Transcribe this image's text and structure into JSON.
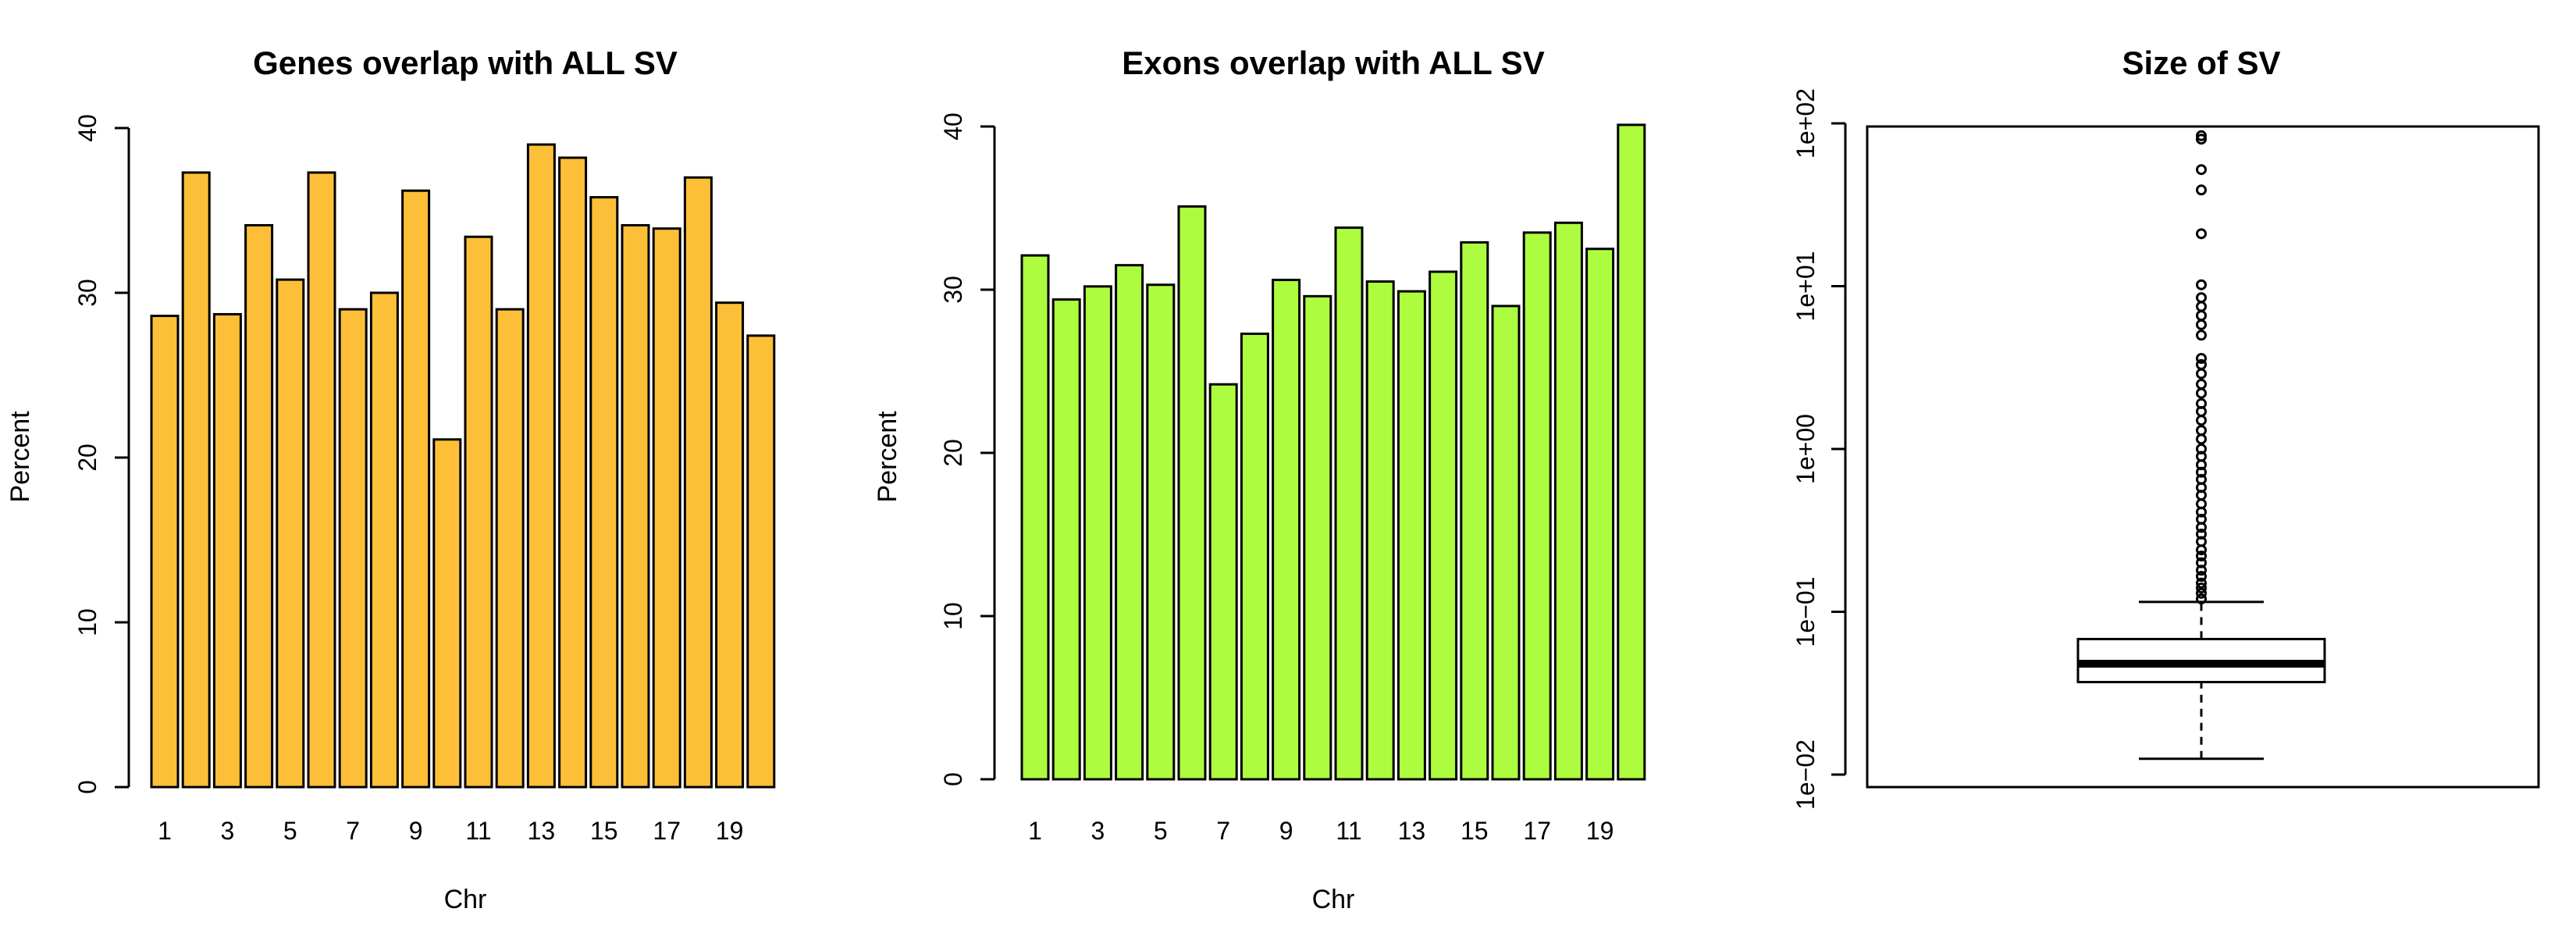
{
  "chart_data": [
    {
      "type": "bar",
      "title": "Genes overlap with ALL SV",
      "xlabel": "Chr",
      "ylabel": "Percent",
      "ylim": [
        0,
        40
      ],
      "yticks": [
        0,
        10,
        20,
        30,
        40
      ],
      "categories": [
        "1",
        "2",
        "3",
        "4",
        "5",
        "6",
        "7",
        "8",
        "9",
        "10",
        "11",
        "12",
        "13",
        "14",
        "15",
        "16",
        "17",
        "18",
        "19",
        "20"
      ],
      "xtick_labels": [
        "1",
        "3",
        "5",
        "7",
        "9",
        "11",
        "13",
        "15",
        "17",
        "19"
      ],
      "values": [
        28.6,
        37.3,
        28.7,
        34.1,
        30.8,
        37.3,
        29.0,
        30.0,
        36.2,
        21.1,
        33.4,
        29.0,
        39.0,
        38.2,
        35.8,
        34.1,
        33.9,
        37.0,
        29.4,
        27.4
      ],
      "color": "#FDBF38",
      "grid": false
    },
    {
      "type": "bar",
      "title": "Exons overlap with ALL SV",
      "xlabel": "Chr",
      "ylabel": "Percent",
      "ylim": [
        0,
        40
      ],
      "yticks": [
        0,
        10,
        20,
        30,
        40
      ],
      "categories": [
        "1",
        "2",
        "3",
        "4",
        "5",
        "6",
        "7",
        "8",
        "9",
        "10",
        "11",
        "12",
        "13",
        "14",
        "15",
        "16",
        "17",
        "18",
        "19",
        "20"
      ],
      "xtick_labels": [
        "1",
        "3",
        "5",
        "7",
        "9",
        "11",
        "13",
        "15",
        "17",
        "19"
      ],
      "values": [
        32.1,
        29.4,
        30.2,
        31.5,
        30.3,
        35.1,
        24.2,
        27.3,
        30.6,
        29.6,
        33.8,
        30.5,
        29.9,
        31.1,
        32.9,
        29.0,
        33.5,
        34.1,
        32.5,
        40.1
      ],
      "color": "#ADFC3F",
      "grid": false
    },
    {
      "type": "boxplot",
      "title": "Size of SV",
      "log_scale": true,
      "yticks": [
        0.01,
        0.1,
        1,
        10,
        100
      ],
      "ytick_labels": [
        "1e−02",
        "1e−01",
        "1e+00",
        "1e+01",
        "1e+02"
      ],
      "whisker_low": 0.0125,
      "q1": 0.037,
      "median": 0.048,
      "q3": 0.068,
      "whisker_high": 0.115,
      "outliers": [
        0.12,
        0.13,
        0.14,
        0.15,
        0.165,
        0.18,
        0.2,
        0.22,
        0.24,
        0.27,
        0.3,
        0.33,
        0.37,
        0.41,
        0.46,
        0.52,
        0.58,
        0.65,
        0.72,
        0.8,
        0.9,
        1.0,
        1.15,
        1.3,
        1.5,
        1.7,
        1.9,
        2.2,
        2.5,
        2.9,
        3.3,
        3.6,
        5.0,
        5.8,
        6.6,
        7.5,
        8.5,
        10.2,
        21,
        39,
        52,
        80,
        84
      ],
      "grid": false
    }
  ]
}
